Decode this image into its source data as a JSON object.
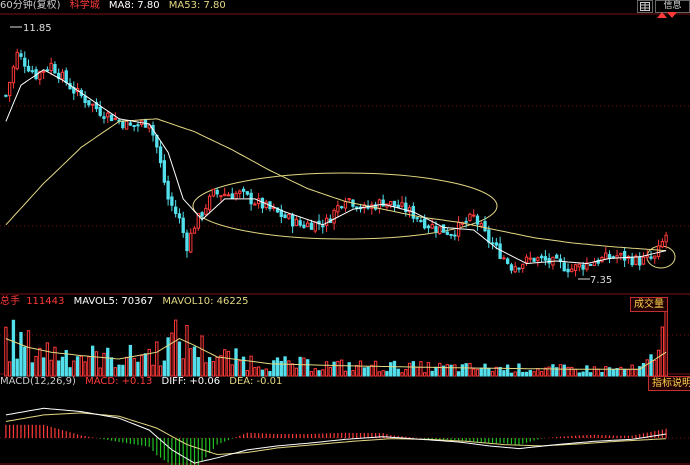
{
  "colors": {
    "up": "#ff3a3a",
    "down": "#53e0ec",
    "ma_short": "#ffffff",
    "ma_long": "#e3d883",
    "dif": "#ffffff",
    "dea": "#e3d883",
    "macd_up": "#ff3a3a",
    "macd_down": "#21c021",
    "grid": "#7a1010",
    "label_red": "#ff3a3a",
    "annotation": "#e3d883"
  },
  "price_panel": {
    "period_label": "60分钟(复权)",
    "stock_name": "科学城",
    "ma8": "MA8: 7.80",
    "ma53": "MA53: 7.80",
    "high_marker": "11.85",
    "low_marker": "7.35"
  },
  "volume_panel": {
    "total_label": "总手",
    "total_value": "111443",
    "mavol5": "MAVOL5: 70367",
    "mavol10": "MAVOL10: 46225",
    "button_label": "成交量"
  },
  "macd_panel": {
    "params": "MACD(12,26,9)",
    "macd": "MACD: +0.13",
    "dif": "DIFF: +0.06",
    "dea": "DEA: -0.01",
    "button_label": "指标说明"
  },
  "toolbar": {
    "left_icon": "grid-icon",
    "info_label": "信息"
  },
  "chart_data": {
    "type": "candlestick",
    "price_keypoints": [
      [
        0,
        10.8
      ],
      [
        3,
        11.6
      ],
      [
        8,
        11.2
      ],
      [
        12,
        11.4
      ],
      [
        18,
        10.9
      ],
      [
        25,
        10.5
      ],
      [
        33,
        10.2
      ],
      [
        38,
        10.3
      ],
      [
        40,
        9.8
      ],
      [
        43,
        8.8
      ],
      [
        46,
        8.4
      ],
      [
        48,
        7.9
      ],
      [
        50,
        8.3
      ],
      [
        55,
        8.9
      ],
      [
        62,
        8.9
      ],
      [
        70,
        8.6
      ],
      [
        78,
        8.3
      ],
      [
        85,
        8.35
      ],
      [
        90,
        8.85
      ],
      [
        95,
        8.6
      ],
      [
        100,
        8.75
      ],
      [
        106,
        8.6
      ],
      [
        112,
        8.3
      ],
      [
        118,
        8.15
      ],
      [
        124,
        8.45
      ],
      [
        128,
        8.0
      ],
      [
        134,
        7.5
      ],
      [
        140,
        7.65
      ],
      [
        146,
        7.55
      ],
      [
        150,
        7.45
      ],
      [
        156,
        7.6
      ],
      [
        162,
        7.7
      ],
      [
        168,
        7.6
      ],
      [
        172,
        7.65
      ],
      [
        175,
        8.1
      ]
    ],
    "candle_count": 176,
    "ma8_keypoints": [
      [
        0,
        10.3
      ],
      [
        4,
        11.0
      ],
      [
        10,
        11.3
      ],
      [
        15,
        11.1
      ],
      [
        22,
        10.75
      ],
      [
        30,
        10.35
      ],
      [
        38,
        10.25
      ],
      [
        43,
        9.7
      ],
      [
        47,
        8.8
      ],
      [
        52,
        8.4
      ],
      [
        58,
        8.8
      ],
      [
        66,
        8.8
      ],
      [
        74,
        8.55
      ],
      [
        84,
        8.3
      ],
      [
        92,
        8.6
      ],
      [
        100,
        8.7
      ],
      [
        108,
        8.55
      ],
      [
        116,
        8.25
      ],
      [
        124,
        8.2
      ],
      [
        130,
        7.85
      ],
      [
        138,
        7.55
      ],
      [
        146,
        7.6
      ],
      [
        154,
        7.55
      ],
      [
        160,
        7.65
      ],
      [
        168,
        7.68
      ],
      [
        175,
        7.8
      ]
    ],
    "ma53_keypoints": [
      [
        0,
        8.3
      ],
      [
        10,
        9.1
      ],
      [
        20,
        9.8
      ],
      [
        30,
        10.3
      ],
      [
        40,
        10.35
      ],
      [
        50,
        10.1
      ],
      [
        60,
        9.75
      ],
      [
        70,
        9.35
      ],
      [
        80,
        9.0
      ],
      [
        90,
        8.75
      ],
      [
        100,
        8.6
      ],
      [
        110,
        8.45
      ],
      [
        120,
        8.35
      ],
      [
        130,
        8.2
      ],
      [
        140,
        8.05
      ],
      [
        150,
        7.95
      ],
      [
        160,
        7.88
      ],
      [
        175,
        7.8
      ]
    ],
    "ylim": [
      7.0,
      12.3
    ],
    "volume_ylim": [
      0,
      111443
    ],
    "volume_ma_keypoints": [
      [
        0,
        0.55
      ],
      [
        6,
        0.42
      ],
      [
        12,
        0.35
      ],
      [
        20,
        0.3
      ],
      [
        30,
        0.25
      ],
      [
        40,
        0.35
      ],
      [
        46,
        0.55
      ],
      [
        50,
        0.45
      ],
      [
        56,
        0.28
      ],
      [
        70,
        0.18
      ],
      [
        90,
        0.15
      ],
      [
        120,
        0.12
      ],
      [
        150,
        0.1
      ],
      [
        168,
        0.1
      ],
      [
        175,
        0.35
      ]
    ],
    "macd_ylim": [
      -0.6,
      0.6
    ],
    "dif_keypoints": [
      [
        0,
        0.35
      ],
      [
        10,
        0.45
      ],
      [
        20,
        0.4
      ],
      [
        30,
        0.3
      ],
      [
        38,
        0.12
      ],
      [
        44,
        -0.18
      ],
      [
        50,
        -0.38
      ],
      [
        56,
        -0.3
      ],
      [
        64,
        -0.18
      ],
      [
        72,
        -0.12
      ],
      [
        80,
        -0.08
      ],
      [
        90,
        -0.02
      ],
      [
        100,
        0.02
      ],
      [
        110,
        -0.02
      ],
      [
        120,
        -0.06
      ],
      [
        128,
        -0.12
      ],
      [
        136,
        -0.16
      ],
      [
        146,
        -0.1
      ],
      [
        156,
        -0.05
      ],
      [
        166,
        -0.02
      ],
      [
        175,
        0.06
      ]
    ],
    "dea_keypoints": [
      [
        0,
        0.25
      ],
      [
        10,
        0.35
      ],
      [
        20,
        0.38
      ],
      [
        30,
        0.33
      ],
      [
        40,
        0.15
      ],
      [
        48,
        -0.1
      ],
      [
        56,
        -0.25
      ],
      [
        64,
        -0.22
      ],
      [
        72,
        -0.15
      ],
      [
        82,
        -0.1
      ],
      [
        92,
        -0.05
      ],
      [
        102,
        -0.01
      ],
      [
        112,
        -0.02
      ],
      [
        122,
        -0.05
      ],
      [
        132,
        -0.1
      ],
      [
        142,
        -0.12
      ],
      [
        152,
        -0.09
      ],
      [
        162,
        -0.05
      ],
      [
        175,
        -0.01
      ]
    ]
  }
}
